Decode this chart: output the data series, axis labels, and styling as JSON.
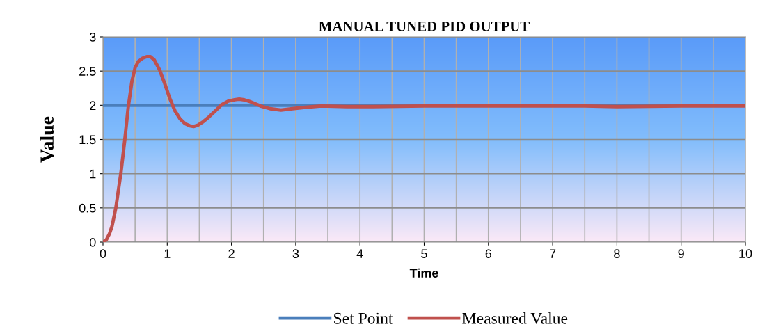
{
  "chart_data": {
    "type": "line",
    "title": "MANUAL TUNED PID OUTPUT",
    "xlabel": "Time",
    "ylabel": "Value",
    "xlim": [
      0,
      10
    ],
    "xticks": [
      0,
      1,
      2,
      3,
      4,
      5,
      6,
      7,
      8,
      9,
      10
    ],
    "ylim": [
      0,
      3
    ],
    "yticks": [
      0,
      0.5,
      1,
      1.5,
      2,
      2.5,
      3
    ],
    "grid": true,
    "legend": "bottom",
    "marker": "none",
    "line_style": "solid",
    "series": [
      {
        "name": "Set Point",
        "color": "#4a7ebb",
        "x": [
          0,
          10
        ],
        "values": [
          2,
          2
        ]
      },
      {
        "name": "Measured Value",
        "color": "#c0504d",
        "x": [
          0,
          0.05,
          0.1,
          0.14,
          0.2,
          0.28,
          0.34,
          0.39,
          0.45,
          0.5,
          0.55,
          0.62,
          0.68,
          0.74,
          0.8,
          0.88,
          0.96,
          1.04,
          1.12,
          1.2,
          1.28,
          1.35,
          1.41,
          1.48,
          1.56,
          1.65,
          1.75,
          1.85,
          1.95,
          2.05,
          2.12,
          2.2,
          2.3,
          2.45,
          2.6,
          2.77,
          2.95,
          3.15,
          3.4,
          3.8,
          4.2,
          5,
          6,
          7,
          7.5,
          8,
          9,
          10
        ],
        "values": [
          0,
          0.03,
          0.12,
          0.23,
          0.5,
          1.02,
          1.5,
          1.95,
          2.35,
          2.55,
          2.64,
          2.69,
          2.71,
          2.71,
          2.66,
          2.52,
          2.32,
          2.1,
          1.92,
          1.8,
          1.73,
          1.7,
          1.69,
          1.71,
          1.76,
          1.83,
          1.92,
          2.01,
          2.06,
          2.08,
          2.09,
          2.08,
          2.05,
          1.99,
          1.95,
          1.93,
          1.95,
          1.97,
          1.99,
          1.98,
          1.98,
          1.99,
          1.99,
          1.99,
          1.99,
          1.98,
          1.99,
          1.99
        ]
      }
    ]
  }
}
